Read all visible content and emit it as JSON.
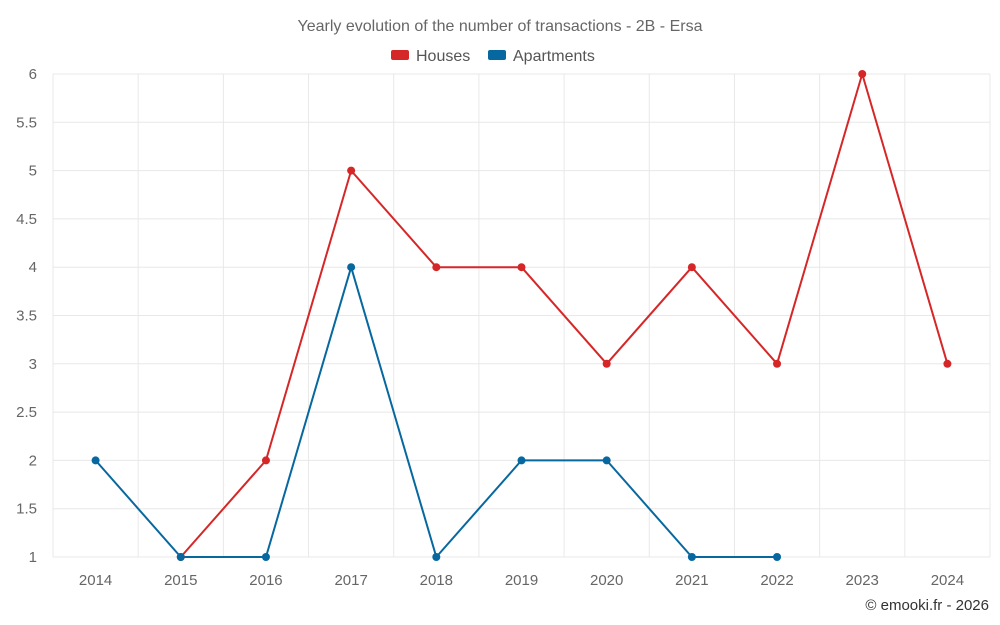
{
  "chart_data": {
    "type": "line",
    "title": "Yearly evolution of the number of transactions - 2B - Ersa",
    "credit": "© emooki.fr - 2026",
    "x": [
      "2014",
      "2015",
      "2016",
      "2017",
      "2018",
      "2019",
      "2020",
      "2021",
      "2022",
      "2023",
      "2024"
    ],
    "ylim": [
      1,
      6
    ],
    "yticks": [
      "1",
      "1.5",
      "2",
      "2.5",
      "3",
      "3.5",
      "4",
      "4.5",
      "5",
      "5.5",
      "6"
    ],
    "grid": true,
    "legend_position": "top-center",
    "series": [
      {
        "name": "Houses",
        "color": "#d62728",
        "values": [
          null,
          1,
          2,
          5,
          4,
          4,
          3,
          4,
          3,
          6,
          3
        ]
      },
      {
        "name": "Apartments",
        "color": "#07689f",
        "values": [
          2,
          1,
          1,
          4,
          1,
          2,
          2,
          1,
          1,
          null,
          null
        ]
      }
    ]
  }
}
